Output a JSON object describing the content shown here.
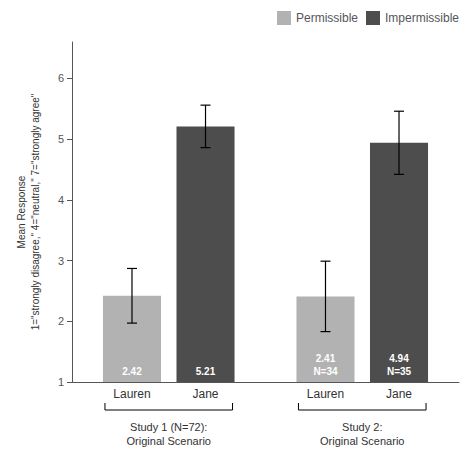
{
  "chart_data": {
    "type": "bar",
    "categories": [
      "Study 1 (N=72):\nOriginal Scenario",
      "Study 2:\nOriginal Scenario"
    ],
    "series": [
      {
        "name": "Permissible",
        "color": "#b2b2b2",
        "bar_labels": [
          "Lauren",
          "Lauren"
        ],
        "values": [
          2.42,
          2.41
        ],
        "errors": [
          0.45,
          0.58
        ],
        "value_labels": [
          "2.42",
          "2.41\nN=34"
        ]
      },
      {
        "name": "Impermissible",
        "color": "#4d4d4d",
        "bar_labels": [
          "Jane",
          "Jane"
        ],
        "values": [
          5.21,
          4.94
        ],
        "errors": [
          0.35,
          0.52
        ],
        "value_labels": [
          "5.21",
          "4.94\nN=35"
        ]
      }
    ],
    "ylabel": "Mean Response\n1=\"strongly disagree,\" 4=\"neutral,\" 7=\"strongly agree\"",
    "ylim": [
      1,
      6.6
    ],
    "yticks": [
      1,
      2,
      3,
      4,
      5,
      6
    ],
    "grid": false,
    "legend": "upper right",
    "data_labels": true
  }
}
